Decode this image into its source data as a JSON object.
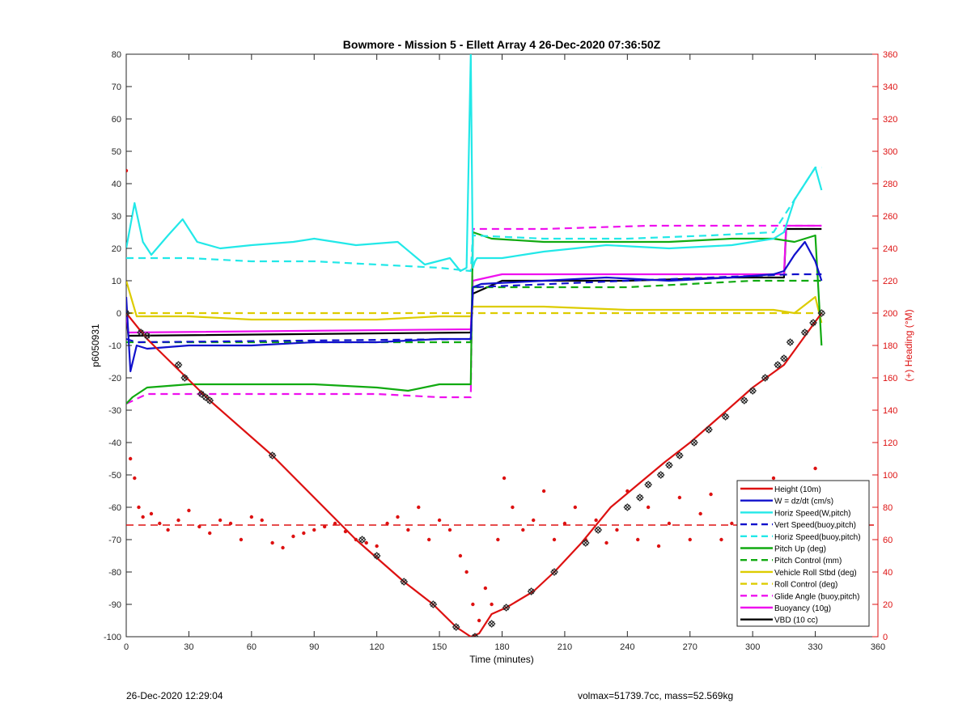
{
  "chart_data": {
    "type": "line",
    "title": "Bowmore - Mission 5 - Ellett Array 4 26-Dec-2020 07:36:50Z",
    "xlabel": "Time (minutes)",
    "ylabel": "p6050931",
    "y2label": "(+) Heading (°M)",
    "xlim": [
      0,
      360
    ],
    "ylim": [
      -100,
      80
    ],
    "y2lim": [
      0,
      360
    ],
    "x_ticks": [
      0,
      30,
      60,
      90,
      120,
      150,
      180,
      210,
      240,
      270,
      300,
      330,
      360
    ],
    "y_ticks": [
      -100,
      -90,
      -80,
      -70,
      -60,
      -50,
      -40,
      -30,
      -20,
      -10,
      0,
      10,
      20,
      30,
      40,
      50,
      60,
      70,
      80
    ],
    "y2_ticks": [
      0,
      20,
      40,
      60,
      80,
      100,
      120,
      140,
      160,
      180,
      200,
      220,
      240,
      260,
      280,
      300,
      320,
      340,
      360
    ],
    "grid": false,
    "legend_position": "lower-right",
    "colors": {
      "red": "#dd1111",
      "blue": "#1111cc",
      "cyan": "#22e8e8",
      "green": "#11aa11",
      "yellow": "#ddcc00",
      "magenta": "#ee11ee",
      "black": "#000000",
      "right_axis": "#dd1111"
    },
    "series": [
      {
        "name": "Height (10m)",
        "color": "#dd1111",
        "style": "solid",
        "axis": "left",
        "x": [
          0,
          10,
          40,
          70,
          110,
          133,
          147,
          158,
          165,
          169,
          175,
          182,
          195,
          205,
          218,
          232,
          245,
          258,
          270,
          286,
          300,
          315,
          333
        ],
        "y": [
          0,
          -8,
          -27,
          -44,
          -70,
          -83,
          -90,
          -97,
          -100,
          -99,
          -93,
          -91,
          -86,
          -80,
          -71,
          -60,
          -53,
          -46,
          -40,
          -31,
          -23,
          -16,
          0
        ]
      },
      {
        "name": "W = dz/dt (cm/s)",
        "color": "#1111cc",
        "style": "solid",
        "axis": "left",
        "x": [
          0,
          2,
          5,
          10,
          30,
          60,
          90,
          120,
          150,
          165,
          166,
          170,
          200,
          230,
          260,
          290,
          310,
          315,
          320,
          325,
          330,
          333
        ],
        "y": [
          5,
          -18,
          -10,
          -11,
          -10,
          -10,
          -9,
          -9,
          -8,
          -8,
          8,
          9,
          10,
          11,
          10,
          11,
          12,
          13,
          18,
          22,
          16,
          10
        ]
      },
      {
        "name": "Horiz Speed(W,pitch)",
        "color": "#22e8e8",
        "style": "solid",
        "axis": "left",
        "x": [
          0,
          4,
          8,
          12,
          20,
          27,
          34,
          45,
          60,
          80,
          90,
          110,
          130,
          143,
          155,
          160,
          163,
          165,
          166,
          167,
          168,
          180,
          200,
          230,
          260,
          290,
          310,
          315,
          320,
          325,
          330,
          333
        ],
        "y": [
          20,
          34,
          22,
          18,
          24,
          29,
          22,
          20,
          21,
          22,
          23,
          21,
          22,
          15,
          17,
          13,
          14,
          80,
          14,
          16,
          17,
          17,
          19,
          21,
          20,
          21,
          23,
          25,
          35,
          40,
          45,
          38
        ]
      },
      {
        "name": "Vert Speed(buoy,pitch)",
        "color": "#1111cc",
        "style": "dashed",
        "axis": "left",
        "x": [
          0,
          5,
          165,
          166,
          240,
          320,
          333
        ],
        "y": [
          -8,
          -9,
          -8,
          8,
          10,
          12,
          12
        ]
      },
      {
        "name": "Horiz Speed(buoy,pitch)",
        "color": "#22e8e8",
        "style": "dashed",
        "axis": "left",
        "x": [
          0,
          30,
          60,
          90,
          120,
          150,
          165,
          166,
          200,
          240,
          280,
          310,
          320,
          330,
          333
        ],
        "y": [
          17,
          17,
          16,
          16,
          15,
          14,
          13,
          24,
          23,
          23,
          24,
          25,
          35,
          45,
          45
        ]
      },
      {
        "name": "Pitch Up (deg)",
        "color": "#11aa11",
        "style": "solid",
        "axis": "left",
        "x": [
          0,
          3,
          10,
          30,
          60,
          90,
          120,
          135,
          150,
          165,
          166,
          175,
          200,
          230,
          260,
          290,
          310,
          320,
          330,
          333
        ],
        "y": [
          -28,
          -26,
          -23,
          -22,
          -22,
          -22,
          -23,
          -24,
          -22,
          -22,
          25,
          23,
          22,
          22,
          22,
          23,
          23,
          22,
          24,
          -10
        ]
      },
      {
        "name": "Pitch Control (mm)",
        "color": "#11aa11",
        "style": "dashed",
        "axis": "left",
        "x": [
          0,
          165,
          166,
          240,
          300,
          333
        ],
        "y": [
          -9,
          -9,
          8,
          8,
          10,
          10
        ]
      },
      {
        "name": "Vehicle Roll Stbd (deg)",
        "color": "#ddcc00",
        "style": "solid",
        "axis": "left",
        "x": [
          0,
          5,
          30,
          60,
          90,
          120,
          150,
          165,
          166,
          200,
          240,
          280,
          310,
          320,
          330,
          333
        ],
        "y": [
          10,
          -1,
          -1,
          -2,
          -2,
          -2,
          -1,
          -1,
          2,
          2,
          1,
          1,
          1,
          0,
          5,
          -3
        ]
      },
      {
        "name": "Roll Control (deg)",
        "color": "#ddcc00",
        "style": "dashed",
        "axis": "left",
        "x": [
          0,
          165,
          166,
          333
        ],
        "y": [
          0,
          0,
          0,
          0
        ]
      },
      {
        "name": "Glide Angle (buoy,pitch)",
        "color": "#ee11ee",
        "style": "dashed",
        "axis": "left",
        "x": [
          0,
          10,
          60,
          120,
          150,
          165,
          166,
          200,
          250,
          290,
          320,
          333
        ],
        "y": [
          -28,
          -25,
          -25,
          -25,
          -26,
          -26,
          26,
          26,
          27,
          27,
          27,
          27
        ]
      },
      {
        "name": "Buoyancy (10g)",
        "color": "#ee11ee",
        "style": "solid",
        "axis": "left",
        "x": [
          0,
          1,
          165,
          166,
          180,
          240,
          290,
          315,
          316,
          333
        ],
        "y": [
          0,
          -6,
          -5,
          10,
          12,
          12,
          12,
          12,
          27,
          27
        ]
      },
      {
        "name": "VBD (10 cc)",
        "color": "#000000",
        "style": "solid",
        "axis": "left",
        "x": [
          0,
          1,
          165,
          166,
          180,
          240,
          290,
          315,
          316,
          333
        ],
        "y": [
          0,
          -7,
          -6,
          6,
          10,
          10,
          11,
          11,
          26,
          26
        ]
      }
    ],
    "heading_series": {
      "name": "(+) Heading (°M)",
      "color": "#dd1111",
      "style": "markers",
      "axis": "right",
      "x": [
        0,
        2,
        4,
        6,
        8,
        12,
        16,
        20,
        25,
        30,
        35,
        40,
        45,
        50,
        55,
        60,
        65,
        70,
        75,
        80,
        85,
        90,
        95,
        100,
        105,
        110,
        115,
        120,
        125,
        130,
        135,
        140,
        145,
        150,
        155,
        160,
        163,
        166,
        169,
        172,
        175,
        178,
        181,
        185,
        190,
        195,
        200,
        205,
        210,
        215,
        220,
        225,
        230,
        235,
        240,
        245,
        250,
        255,
        260,
        265,
        270,
        275,
        280,
        285,
        290,
        295,
        300,
        305,
        310,
        315,
        320,
        325,
        330
      ],
      "y": [
        288,
        110,
        98,
        80,
        74,
        76,
        70,
        66,
        72,
        78,
        68,
        64,
        72,
        70,
        60,
        74,
        72,
        58,
        55,
        62,
        64,
        66,
        68,
        70,
        65,
        60,
        58,
        56,
        70,
        74,
        66,
        80,
        60,
        72,
        66,
        50,
        40,
        20,
        10,
        30,
        20,
        60,
        98,
        80,
        66,
        72,
        90,
        60,
        70,
        80,
        60,
        72,
        58,
        66,
        90,
        60,
        80,
        56,
        70,
        86,
        60,
        76,
        88,
        60,
        70,
        92,
        66,
        60,
        98,
        70,
        60,
        90,
        104
      ]
    },
    "heading_mean": {
      "name": "mean heading",
      "value": 69,
      "color": "#dd1111",
      "style": "dashed",
      "axis": "right"
    },
    "dive_markers": {
      "x": [
        0,
        7,
        10,
        25,
        28,
        36,
        38,
        40,
        70,
        113,
        120,
        133,
        147,
        158,
        167,
        175,
        182,
        194,
        205,
        220,
        226,
        240,
        246,
        250,
        256,
        260,
        265,
        272,
        279,
        287,
        296,
        300,
        306,
        312,
        315,
        318,
        325,
        329,
        333
      ],
      "y": [
        0,
        -6,
        -7,
        -16,
        -20,
        -25,
        -26,
        -27,
        -44,
        -70,
        -75,
        -83,
        -90,
        -97,
        -100,
        -96,
        -91,
        -86,
        -80,
        -71,
        -67,
        -60,
        -57,
        -53,
        -50,
        -47,
        -44,
        -40,
        -36,
        -32,
        -27,
        -24,
        -20,
        -16,
        -14,
        -9,
        -6,
        -3,
        0
      ]
    }
  },
  "footer": {
    "left": "26-Dec-2020 12:29:04",
    "right": "volmax=51739.7cc, mass=52.569kg"
  }
}
